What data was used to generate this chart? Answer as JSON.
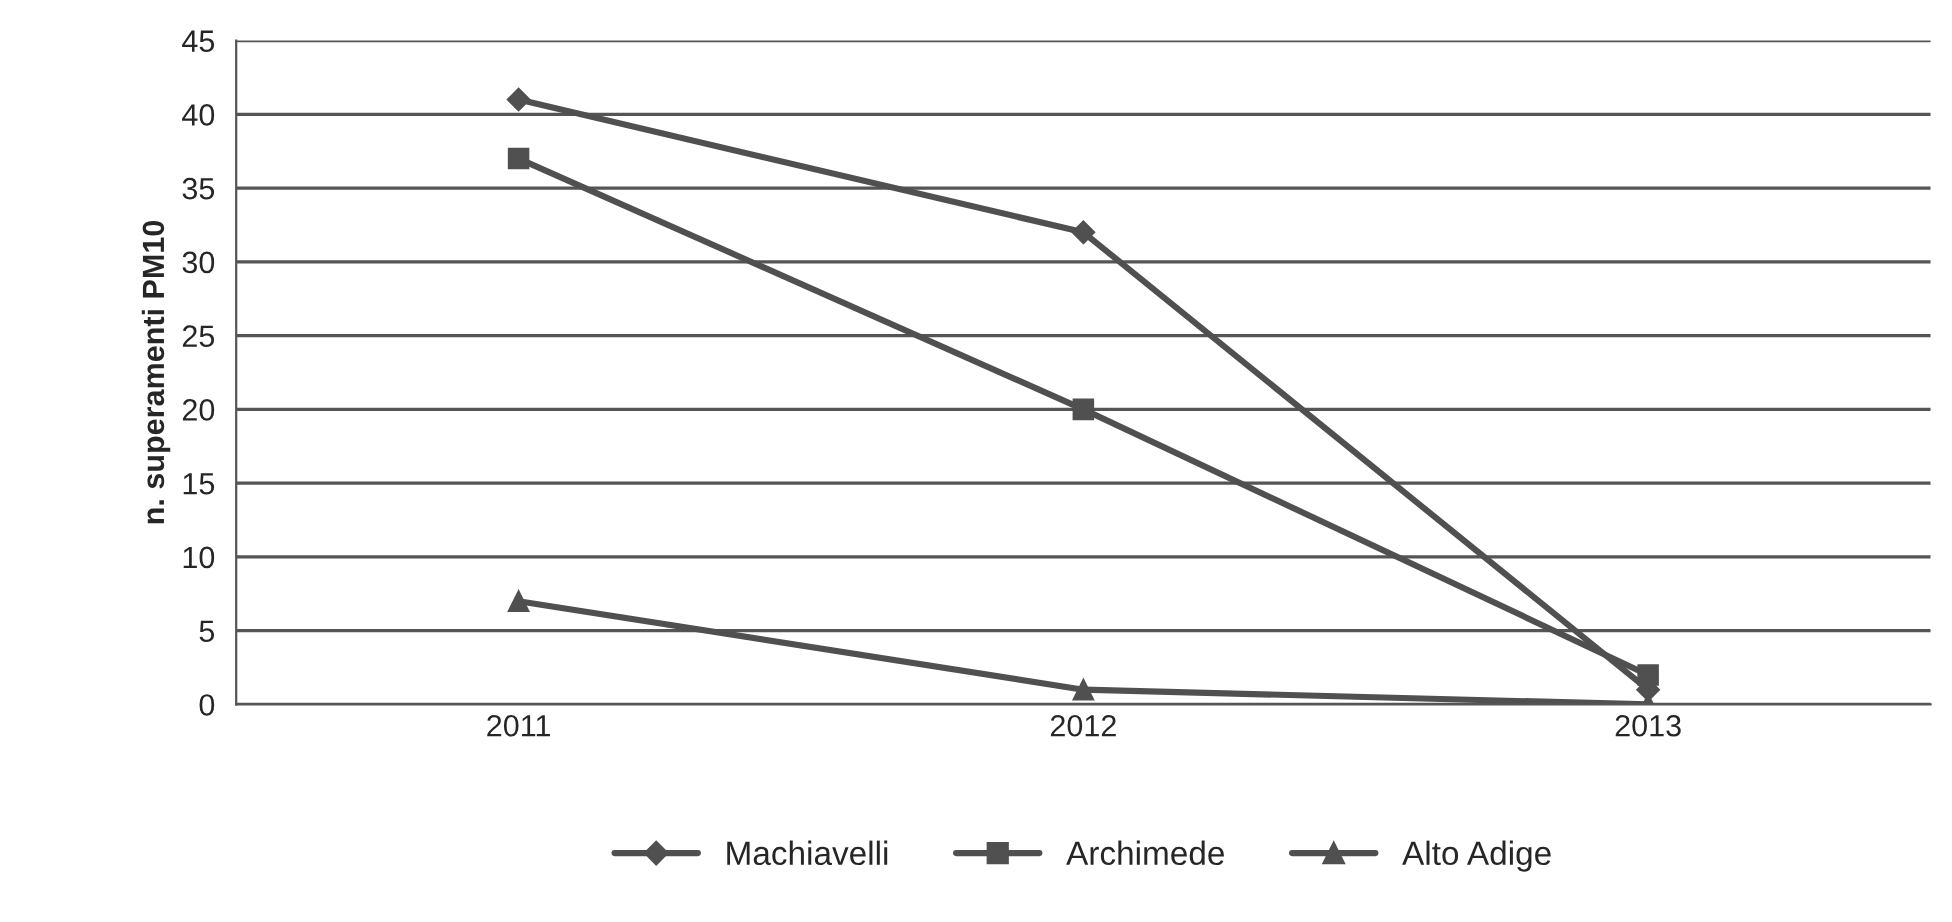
{
  "chart_data": {
    "type": "line",
    "ylabel": "n. superamenti PM10",
    "categories": [
      "2011",
      "2012",
      "2013"
    ],
    "series": [
      {
        "name": "Machiavelli",
        "color": "#505050",
        "marker": "diamond",
        "values": [
          41,
          32,
          1
        ]
      },
      {
        "name": "Archimede",
        "color": "#505050",
        "marker": "square",
        "values": [
          37,
          20,
          2
        ]
      },
      {
        "name": "Alto Adige",
        "color": "#505050",
        "marker": "triangle",
        "values": [
          7,
          1,
          0
        ]
      }
    ],
    "ylim": [
      0,
      45
    ],
    "yticks": [
      0,
      5,
      10,
      15,
      20,
      25,
      30,
      35,
      40,
      45
    ],
    "grid": "y",
    "legend": "bottom",
    "line_style": "solid"
  }
}
